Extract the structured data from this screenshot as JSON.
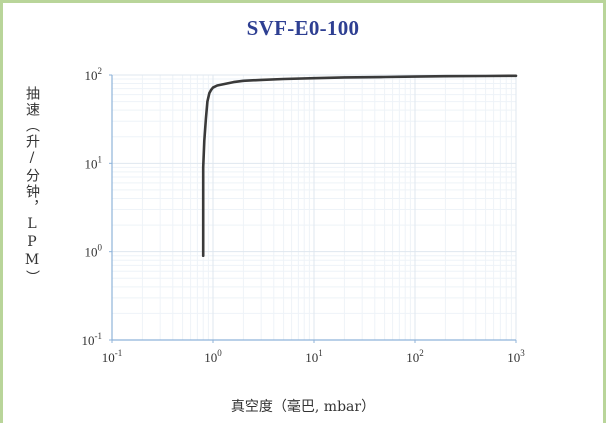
{
  "chart_data": {
    "type": "line",
    "title": "SVF-E0-100",
    "xlabel": "真空度（毫巴, mbar）",
    "ylabel": "抽速（升/分钟，LPM）",
    "x_scale": "log",
    "y_scale": "log",
    "xlim": [
      0.1,
      1000
    ],
    "ylim": [
      0.1,
      100
    ],
    "x_ticks": [
      "10^-1",
      "10^0",
      "10^1",
      "10^2",
      "10^3"
    ],
    "y_ticks": [
      "10^-1",
      "10^0",
      "10^1",
      "10^2"
    ],
    "grid": true,
    "legend": "none",
    "series": [
      {
        "x": [
          0.8,
          0.8,
          0.82,
          0.85,
          0.88,
          0.92,
          0.96,
          1.0,
          1.1,
          1.3,
          1.6,
          2.0,
          3.0,
          5.0,
          10,
          20,
          50,
          100,
          200,
          500,
          1000
        ],
        "y": [
          0.9,
          9,
          18,
          32,
          50,
          62,
          68,
          72,
          76,
          79,
          83,
          86,
          88,
          90,
          92,
          94,
          95,
          96,
          97,
          97.5,
          98
        ]
      }
    ],
    "colors": {
      "line": "#3a3a3a",
      "grid": "#e8eef4",
      "axis": "#8fb3d9",
      "title": "#2e3f92",
      "border": "#b9d59a"
    }
  }
}
